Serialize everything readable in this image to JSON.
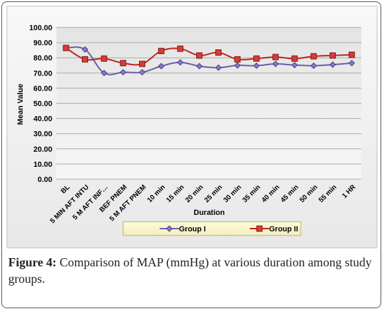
{
  "caption": {
    "label": "Figure 4:",
    "text": " Comparison of MAP (mmHg) at various duration among study groups."
  },
  "chart_data": {
    "type": "line",
    "categories": [
      "BL",
      "5 MIN AFT INTU",
      "5 M AFT INF…",
      "BEF PNEM",
      "5 M AFT PNEM",
      "10 min",
      "15 min",
      "20 min",
      "25 min",
      "30 min",
      "35 min",
      "40 min",
      "45 min",
      "50 min",
      "55 min",
      "1 HR"
    ],
    "series": [
      {
        "name": "Group I",
        "color": "#6b5ba8",
        "marker": "diamond",
        "values": [
          86.5,
          85.5,
          70.0,
          70.5,
          70.5,
          74.5,
          77.0,
          74.5,
          73.5,
          75.0,
          74.8,
          76.0,
          75.2,
          74.8,
          75.5,
          76.5
        ]
      },
      {
        "name": "Group II",
        "color": "#c0201a",
        "marker": "square",
        "values": [
          86.5,
          79.0,
          79.5,
          76.5,
          76.0,
          84.5,
          86.0,
          81.5,
          83.5,
          79.0,
          79.5,
          80.5,
          79.5,
          81.0,
          81.5,
          82.0
        ]
      }
    ],
    "yticks": [
      "0.00",
      "10.00",
      "20.00",
      "30.00",
      "40.00",
      "50.00",
      "60.00",
      "70.00",
      "80.00",
      "90.00",
      "100.00"
    ],
    "ylim": [
      0,
      100
    ],
    "xlabel": "Duration",
    "ylabel": "Mean Value",
    "grid": true,
    "legend": "bottom"
  }
}
